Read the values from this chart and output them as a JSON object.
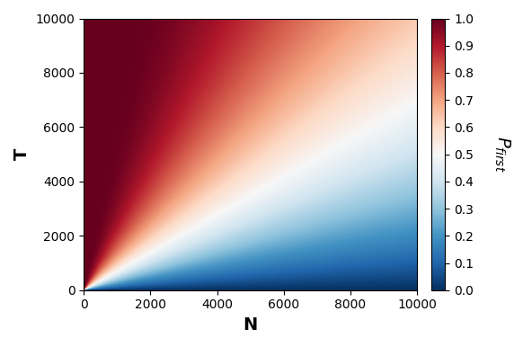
{
  "N_min": 1,
  "N_max": 10000,
  "T_min": 0,
  "T_max": 10000,
  "N_steps": 500,
  "T_steps": 500,
  "xlabel": "N",
  "ylabel": "T",
  "colorbar_label": "$P_{first}$",
  "colorbar_ticks": [
    0.0,
    0.1,
    0.2,
    0.3,
    0.4,
    0.5,
    0.6,
    0.7,
    0.8,
    0.9,
    1.0
  ],
  "xticks": [
    0,
    2000,
    4000,
    6000,
    8000,
    10000
  ],
  "yticks": [
    0,
    2000,
    4000,
    6000,
    8000,
    10000
  ],
  "cmap": "RdBu_r",
  "vmin": 0.0,
  "vmax": 1.0,
  "figsize": [
    5.82,
    3.86
  ],
  "dpi": 100
}
